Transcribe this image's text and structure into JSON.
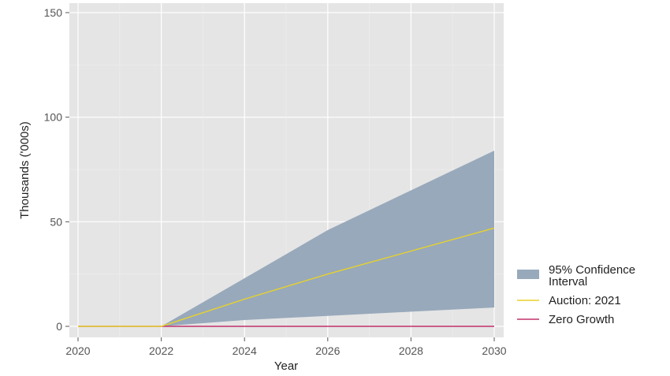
{
  "chart_data": {
    "type": "area",
    "xlabel": "Year",
    "ylabel": "Thousands ('000s)",
    "xlim": [
      2020,
      2030
    ],
    "ylim": [
      -4,
      155
    ],
    "x_ticks": [
      2020,
      2022,
      2024,
      2026,
      2028,
      2030
    ],
    "y_ticks": [
      0,
      50,
      100,
      150
    ],
    "grid": true,
    "legend_position": "right",
    "confidence_band": {
      "name": "95% Confidence Interval",
      "color": "#98a9bb",
      "x": [
        2022,
        2024,
        2026,
        2028,
        2030
      ],
      "lower": [
        0,
        3,
        5,
        7,
        9
      ],
      "upper": [
        0,
        23,
        46,
        65,
        84
      ]
    },
    "series": [
      {
        "name": "Auction: 2021",
        "color": "#e8d22a",
        "x": [
          2020,
          2022,
          2024,
          2026,
          2028,
          2030
        ],
        "values": [
          0,
          0,
          13,
          25,
          36,
          47
        ]
      },
      {
        "name": "Zero Growth",
        "color": "#c0306a",
        "x": [
          2020,
          2030
        ],
        "values": [
          0,
          0
        ]
      }
    ],
    "legend": {
      "band_label_line1": "95% Confidence",
      "band_label_line2": "Interval",
      "line1_label": "Auction: 2021",
      "line2_label": "Zero Growth"
    }
  }
}
